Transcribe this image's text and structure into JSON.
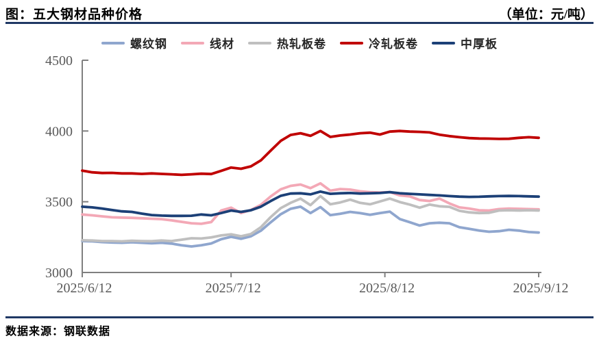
{
  "header": {
    "title": "图：五大钢材品种价格",
    "unit": "（单位：元/吨）"
  },
  "footer": {
    "source": "数据来源：钢联数据"
  },
  "colors": {
    "rule_line": "#1F3864",
    "axis": "#7F7F7F",
    "tick_text": "#595959"
  },
  "chart_data": {
    "type": "line",
    "title": "五大钢材品种价格",
    "unit": "元/吨",
    "grid": false,
    "legend_position": "top",
    "ylim": [
      3000,
      4500
    ],
    "yticks": [
      4500,
      4000,
      3500,
      3000
    ],
    "xtick_labels": [
      "2025/6/12",
      "2025/7/12",
      "2025/8/12",
      "2025/9/12"
    ],
    "xtick_days": [
      0,
      30,
      61,
      92
    ],
    "x_days": [
      0,
      2,
      4,
      6,
      8,
      10,
      12,
      14,
      16,
      18,
      20,
      22,
      24,
      26,
      28,
      30,
      32,
      34,
      36,
      38,
      40,
      42,
      44,
      46,
      48,
      50,
      52,
      54,
      56,
      58,
      60,
      62,
      64,
      66,
      68,
      70,
      72,
      74,
      76,
      78,
      80,
      82,
      84,
      86,
      88,
      90,
      92
    ],
    "series": [
      {
        "key": "rebar",
        "name": "螺纹钢",
        "color": "#8FA6CE",
        "values": [
          3222,
          3220,
          3215,
          3212,
          3210,
          3214,
          3210,
          3206,
          3210,
          3204,
          3192,
          3184,
          3192,
          3205,
          3235,
          3252,
          3238,
          3256,
          3295,
          3355,
          3412,
          3450,
          3465,
          3420,
          3462,
          3405,
          3415,
          3428,
          3420,
          3408,
          3420,
          3430,
          3378,
          3355,
          3332,
          3348,
          3352,
          3348,
          3320,
          3308,
          3296,
          3288,
          3292,
          3302,
          3296,
          3286,
          3282
        ]
      },
      {
        "key": "wire-rod",
        "name": "线材",
        "color": "#F3A8B6",
        "values": [
          3410,
          3404,
          3397,
          3390,
          3388,
          3386,
          3383,
          3380,
          3377,
          3368,
          3358,
          3348,
          3344,
          3356,
          3438,
          3458,
          3420,
          3442,
          3478,
          3538,
          3588,
          3612,
          3622,
          3596,
          3630,
          3578,
          3590,
          3586,
          3574,
          3568,
          3565,
          3568,
          3545,
          3538,
          3512,
          3505,
          3522,
          3488,
          3460,
          3452,
          3440,
          3438,
          3448,
          3452,
          3450,
          3448,
          3446
        ]
      },
      {
        "key": "hot-rolled-coil",
        "name": "热轧板卷",
        "color": "#BFBFBF",
        "values": [
          3228,
          3226,
          3222,
          3222,
          3220,
          3224,
          3222,
          3221,
          3226,
          3222,
          3232,
          3242,
          3240,
          3248,
          3262,
          3270,
          3256,
          3272,
          3320,
          3392,
          3455,
          3492,
          3522,
          3476,
          3540,
          3482,
          3495,
          3515,
          3492,
          3482,
          3502,
          3522,
          3498,
          3480,
          3458,
          3480,
          3468,
          3464,
          3436,
          3425,
          3420,
          3422,
          3438,
          3440,
          3438,
          3440,
          3438
        ]
      },
      {
        "key": "cold-rolled-coil",
        "name": "冷轧板卷",
        "color": "#C00000",
        "values": [
          3720,
          3708,
          3703,
          3704,
          3700,
          3700,
          3697,
          3700,
          3697,
          3694,
          3690,
          3694,
          3698,
          3696,
          3718,
          3742,
          3733,
          3750,
          3792,
          3862,
          3930,
          3972,
          3984,
          3966,
          4000,
          3958,
          3968,
          3975,
          3984,
          3988,
          3975,
          3996,
          4000,
          3996,
          3994,
          3990,
          3974,
          3964,
          3956,
          3950,
          3947,
          3946,
          3944,
          3945,
          3952,
          3956,
          3952
        ]
      },
      {
        "key": "medium-plate",
        "name": "中厚板",
        "color": "#1C4077",
        "values": [
          3465,
          3460,
          3452,
          3442,
          3432,
          3428,
          3416,
          3406,
          3402,
          3400,
          3400,
          3401,
          3410,
          3404,
          3420,
          3438,
          3428,
          3440,
          3465,
          3505,
          3542,
          3558,
          3560,
          3552,
          3572,
          3556,
          3560,
          3562,
          3558,
          3560,
          3562,
          3568,
          3560,
          3556,
          3552,
          3548,
          3545,
          3540,
          3536,
          3534,
          3535,
          3538,
          3540,
          3541,
          3540,
          3538,
          3536
        ]
      }
    ]
  }
}
